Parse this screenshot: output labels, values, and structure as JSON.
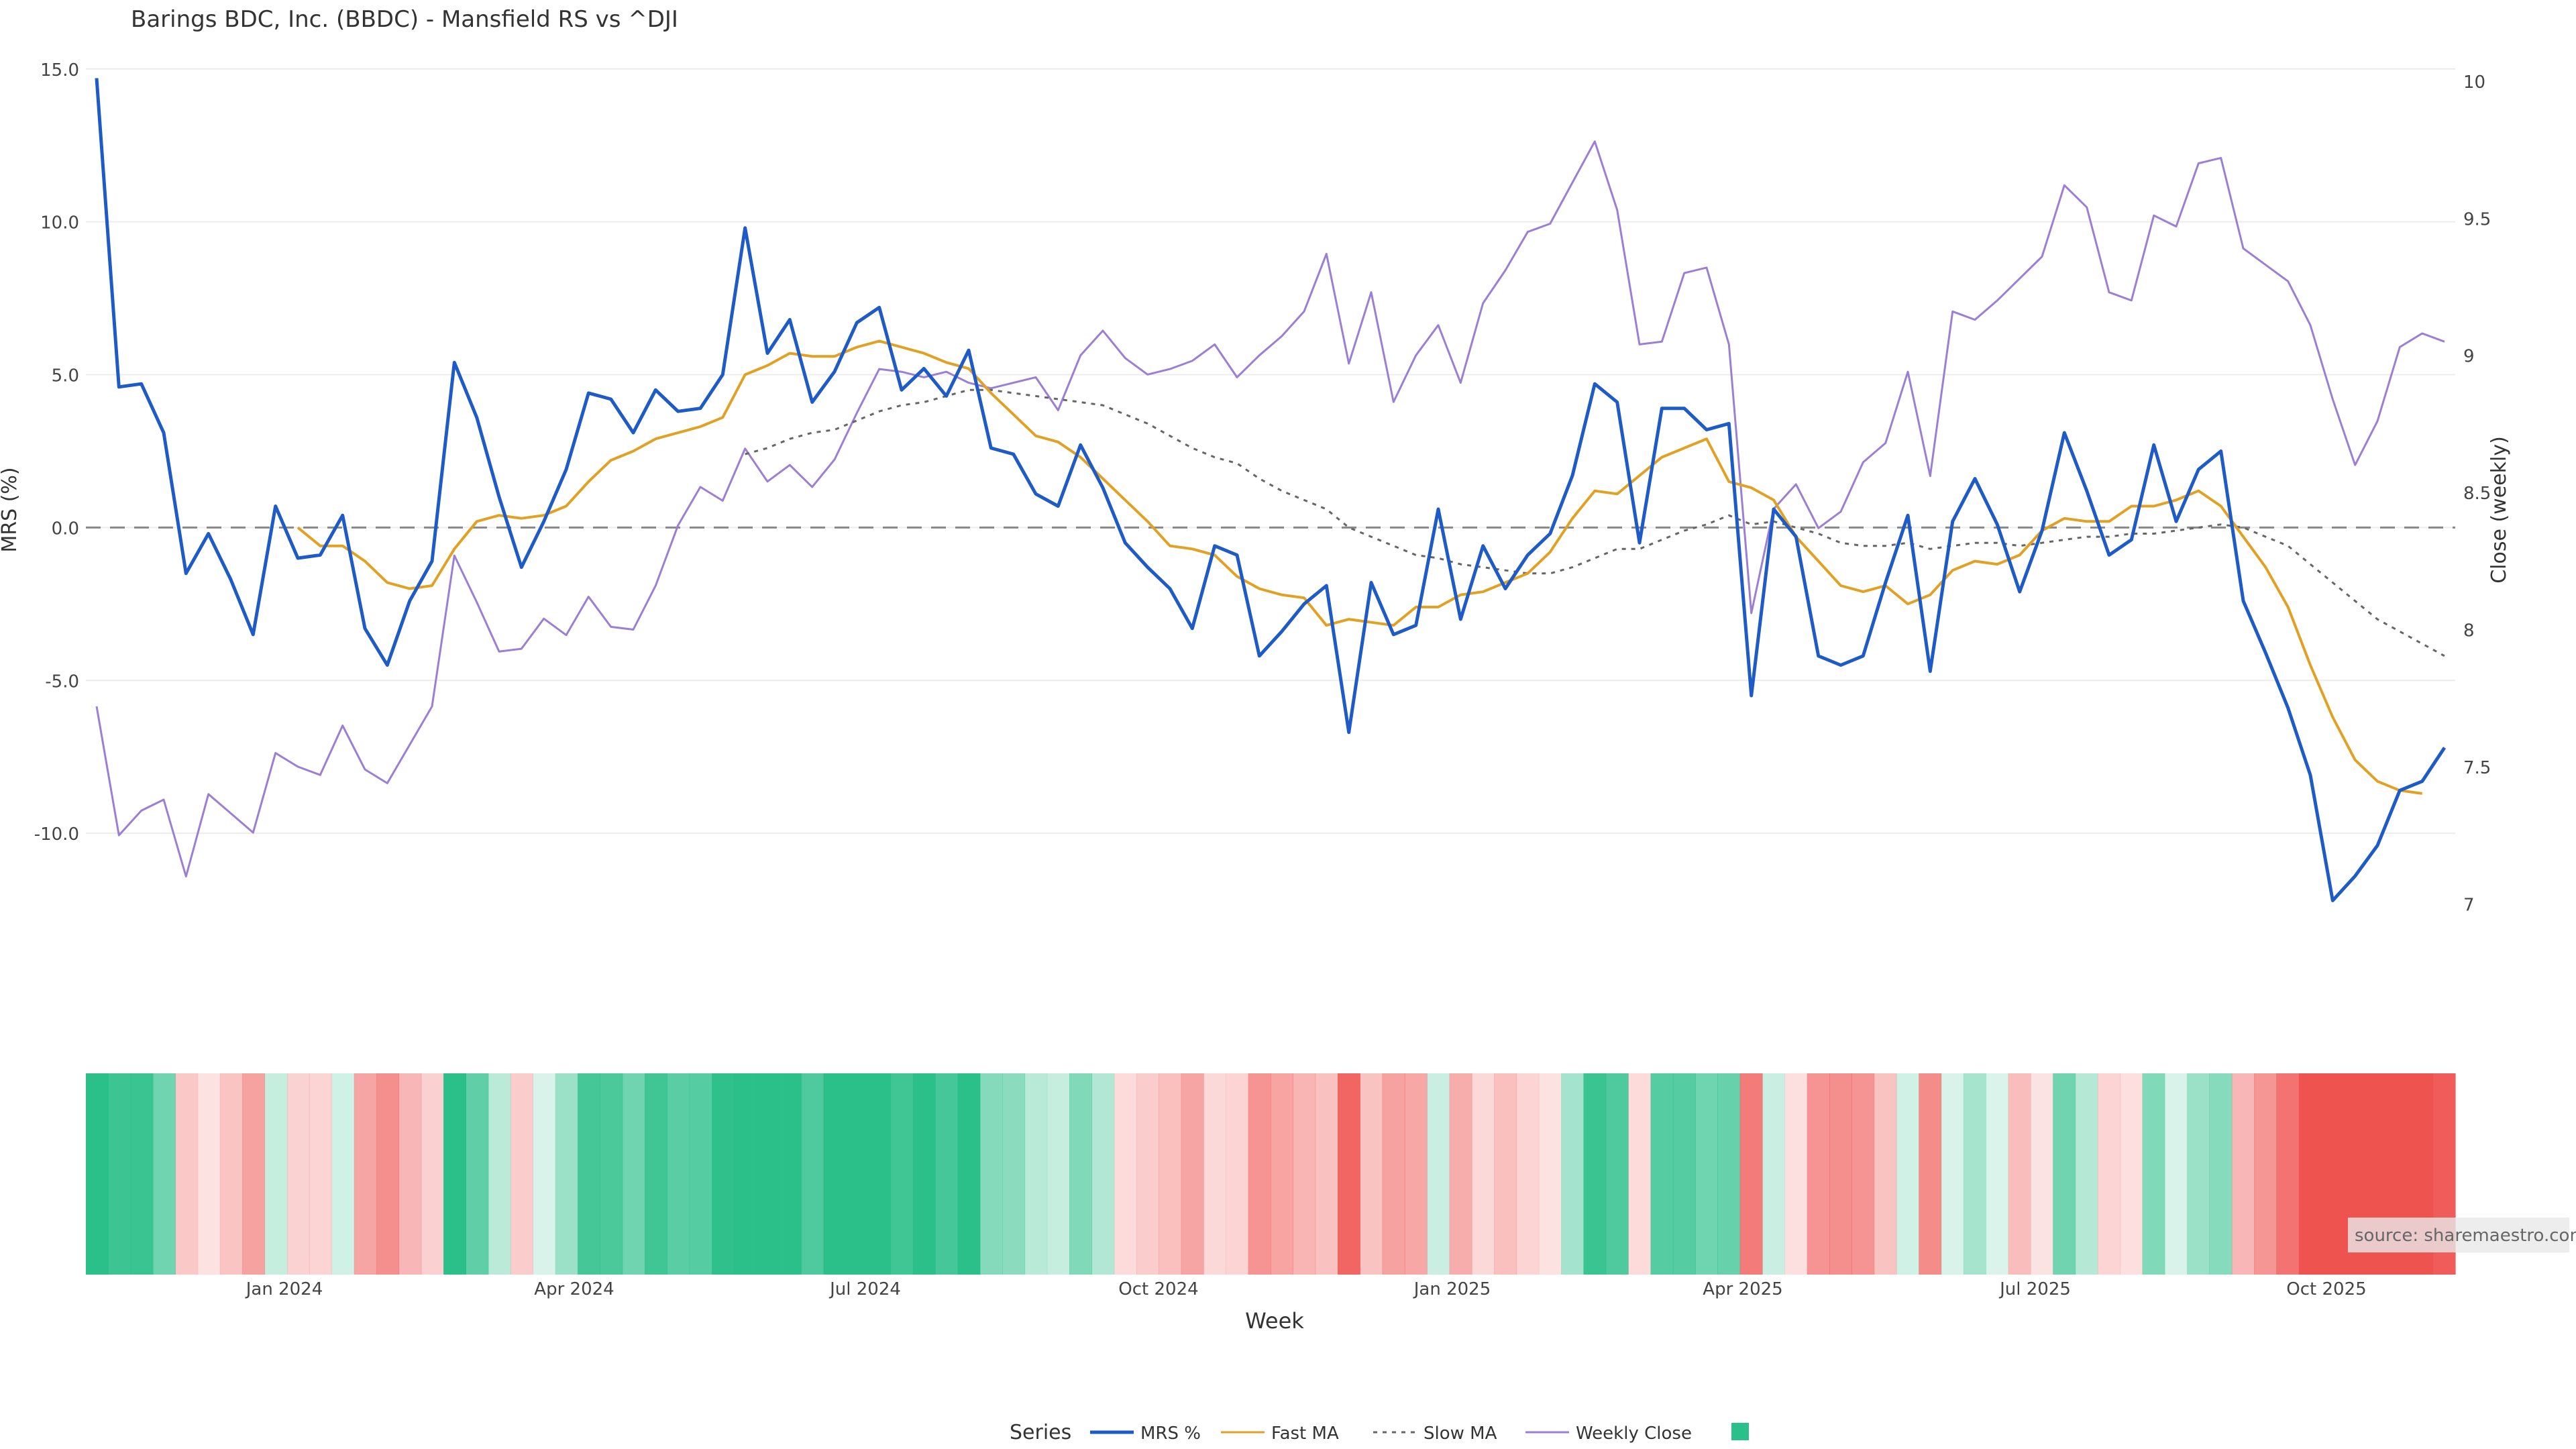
{
  "title": "Barings BDC, Inc. (BBDC) - Mansfield RS vs ^DJI",
  "source_label": "source: sharemaestro.com",
  "chart_data": {
    "type": "line",
    "title": "Barings BDC, Inc. (BBDC) - Mansfield RS vs ^DJI",
    "xlabel": "Week",
    "ylabel_left": "MRS (%)",
    "ylabel_right": "Close (weekly)",
    "x_ticks": [
      "Jan 2024",
      "Apr 2024",
      "Jul 2024",
      "Oct 2024",
      "Jan 2025",
      "Apr 2025",
      "Jul 2025",
      "Oct 2025"
    ],
    "ylim_left": [
      -15,
      15.5
    ],
    "y_ticks_left": [
      "15.0",
      "10.0",
      "5.0",
      "0.0",
      "-5.0",
      "-10.0"
    ],
    "ylim_right": [
      6.7,
      10.1
    ],
    "y_ticks_right": [
      "10",
      "9.5",
      "9",
      "8.5",
      "8",
      "7.5",
      "7"
    ],
    "grid": true,
    "legend_title": "Series",
    "legend_position": "bottom-center",
    "series": [
      {
        "name": "MRS %",
        "color": "#1f5bc6",
        "axis": "left",
        "values": [
          14.7,
          4.6,
          4.7,
          3.1,
          -1.5,
          -0.2,
          -1.7,
          -3.5,
          0.7,
          -1,
          -0.9,
          0.4,
          -3.3,
          -4.5,
          -2.4,
          -1.1,
          5.4,
          3.6,
          1,
          -1.3,
          0.2,
          1.9,
          4.4,
          4.2,
          3.1,
          4.5,
          3.8,
          3.9,
          5,
          9.8,
          5.7,
          6.8,
          4.1,
          5.1,
          6.7,
          7.2,
          4.5,
          5.2,
          4.3,
          5.8,
          2.6,
          2.4,
          1.1,
          0.7,
          2.7,
          1.3,
          -0.5,
          -1.3,
          -2,
          -3.3,
          -0.6,
          -0.9,
          -4.2,
          -3.4,
          -2.5,
          -1.9,
          -6.7,
          -1.8,
          -3.5,
          -3.2,
          0.6,
          -3,
          -0.6,
          -2,
          -0.9,
          -0.2,
          1.7,
          4.7,
          4.1,
          -0.5,
          3.9,
          3.9,
          3.2,
          3.4,
          -5.5,
          0.6,
          -0.3,
          -4.2,
          -4.5,
          -4.2,
          -1.8,
          0.4,
          -4.7,
          0.2,
          1.6,
          0.1,
          -2.1,
          -0.1,
          3.1,
          1.2,
          -0.9,
          -0.4,
          2.7,
          0.2,
          1.9,
          2.5,
          -2.4,
          -4.1,
          -5.9,
          -8.1,
          -12.2,
          -11.4,
          -10.4,
          -8.6,
          -8.3,
          -7.2
        ]
      },
      {
        "name": "Fast MA",
        "color": "#e0a125",
        "axis": "left",
        "start_index": 9,
        "values": [
          0,
          -0.6,
          -0.6,
          -1.1,
          -1.8,
          -2,
          -1.9,
          -0.7,
          0.2,
          0.4,
          0.3,
          0.4,
          0.7,
          1.5,
          2.2,
          2.5,
          2.9,
          3.1,
          3.3,
          3.6,
          5,
          5.3,
          5.7,
          5.6,
          5.6,
          5.9,
          6.1,
          5.9,
          5.7,
          5.4,
          5.2,
          4.4,
          3.7,
          3,
          2.8,
          2.3,
          1.6,
          0.9,
          0.2,
          -0.6,
          -0.7,
          -0.9,
          -1.6,
          -2,
          -2.2,
          -2.3,
          -3.2,
          -3,
          -3.1,
          -3.2,
          -2.6,
          -2.6,
          -2.2,
          -2.1,
          -1.8,
          -1.5,
          -0.8,
          0.3,
          1.2,
          1.1,
          1.7,
          2.3,
          2.6,
          2.9,
          1.5,
          1.3,
          0.9,
          -0.3,
          -1.1,
          -1.9,
          -2.1,
          -1.9,
          -2.5,
          -2.2,
          -1.4,
          -1.1,
          -1.2,
          -0.9,
          -0.1,
          0.3,
          0.2,
          0.2,
          0.7,
          0.7,
          0.9,
          1.2,
          0.7,
          -0.3,
          -1.3,
          -2.6,
          -4.5,
          -6.2,
          -7.6,
          -8.3,
          -8.6,
          -8.7
        ]
      },
      {
        "name": "Slow MA",
        "color": "#666666",
        "axis": "left",
        "dash": true,
        "start_index": 29,
        "values": [
          2.4,
          2.6,
          2.9,
          3.1,
          3.2,
          3.5,
          3.8,
          4,
          4.1,
          4.3,
          4.5,
          4.5,
          4.4,
          4.3,
          4.2,
          4.1,
          4,
          3.7,
          3.4,
          3,
          2.6,
          2.3,
          2.1,
          1.6,
          1.2,
          0.9,
          0.6,
          0,
          -0.3,
          -0.6,
          -0.9,
          -1,
          -1.2,
          -1.3,
          -1.4,
          -1.5,
          -1.5,
          -1.3,
          -1,
          -0.7,
          -0.7,
          -0.4,
          -0.1,
          0.1,
          0.4,
          0.1,
          0.2,
          0,
          -0.2,
          -0.5,
          -0.6,
          -0.6,
          -0.5,
          -0.7,
          -0.6,
          -0.5,
          -0.5,
          -0.6,
          -0.5,
          -0.4,
          -0.3,
          -0.3,
          -0.2,
          -0.2,
          -0.1,
          0,
          0.1,
          0,
          -0.3,
          -0.6,
          -1.2,
          -1.8,
          -2.4,
          -3,
          -3.4,
          -3.8,
          -4.2
        ]
      },
      {
        "name": "Weekly Close",
        "color": "#9b7fd4",
        "axis": "right",
        "values": [
          7.72,
          7.25,
          7.34,
          7.38,
          7.1,
          7.4,
          7.33,
          7.26,
          7.55,
          7.5,
          7.47,
          7.65,
          7.49,
          7.44,
          7.58,
          7.72,
          8.27,
          8.1,
          7.92,
          7.93,
          8.04,
          7.98,
          8.12,
          8.01,
          8,
          8.16,
          8.38,
          8.52,
          8.47,
          8.66,
          8.54,
          8.6,
          8.52,
          8.62,
          8.79,
          8.95,
          8.94,
          8.92,
          8.94,
          8.9,
          8.88,
          8.9,
          8.92,
          8.8,
          9,
          9.09,
          8.99,
          8.93,
          8.95,
          8.98,
          9.04,
          8.92,
          9,
          9.07,
          9.16,
          9.37,
          8.97,
          9.23,
          8.83,
          9,
          9.11,
          8.9,
          9.19,
          9.31,
          9.45,
          9.48,
          9.63,
          9.78,
          9.53,
          9.04,
          9.05,
          9.3,
          9.32,
          9.04,
          8.06,
          8.44,
          8.53,
          8.37,
          8.43,
          8.61,
          8.68,
          8.94,
          8.56,
          9.16,
          9.13,
          9.2,
          9.28,
          9.36,
          9.62,
          9.54,
          9.23,
          9.2,
          9.51,
          9.47,
          9.7,
          9.72,
          9.39,
          9.33,
          9.27,
          9.11,
          8.84,
          8.6,
          8.76,
          9.03,
          9.08,
          9.05
        ]
      }
    ],
    "heatmap": {
      "type": "heatmap",
      "description_values": "weekly MRS shading, negative=red, positive=green",
      "values": [
        14.7,
        4.6,
        4.7,
        3.1,
        -1.5,
        -0.2,
        -1.7,
        -3.5,
        0.7,
        -1,
        -0.9,
        0.4,
        -3.3,
        -4.5,
        -2.4,
        -1.1,
        5.4,
        3.6,
        1,
        -1.3,
        0.2,
        1.9,
        4.4,
        4.2,
        3.1,
        4.5,
        3.8,
        3.9,
        5,
        9.8,
        5.7,
        6.8,
        4.1,
        5.1,
        6.7,
        7.2,
        4.5,
        5.2,
        4.3,
        5.8,
        2.6,
        2.4,
        1.1,
        0.7,
        2.7,
        1.3,
        -0.5,
        -1.3,
        -2,
        -3.3,
        -0.6,
        -0.9,
        -4.2,
        -3.4,
        -2.5,
        -1.9,
        -6.7,
        -1.8,
        -3.5,
        -3.2,
        0.6,
        -3,
        -0.6,
        -2,
        -0.9,
        -0.2,
        1.7,
        4.7,
        4.1,
        -0.5,
        3.9,
        3.9,
        3.2,
        3.4,
        -5.5,
        0.6,
        -0.3,
        -4.2,
        -4.5,
        -4.2,
        -1.8,
        0.4,
        -4.7,
        0.2,
        1.6,
        0.1,
        -2.1,
        -0.1,
        3.1,
        1.2,
        -0.9,
        -0.4,
        2.7,
        0.2,
        1.9,
        2.5,
        -2.4,
        -4.1,
        -5.9,
        -8.1,
        -12.2,
        -11.4,
        -10.4,
        -8.6,
        -8.3,
        -7.2
      ]
    },
    "legend_swatch_color": "#2bbf8a"
  }
}
